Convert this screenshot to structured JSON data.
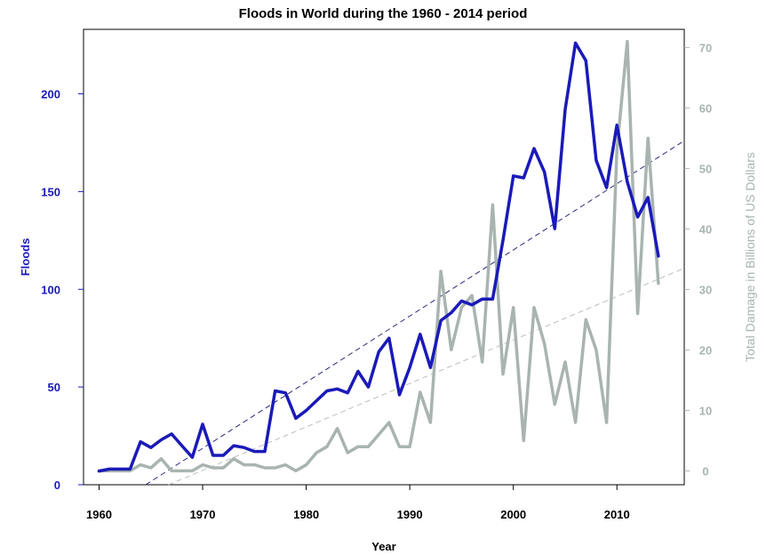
{
  "chart_data": {
    "type": "line",
    "title": "Floods in World during the 1960 - 2014  period",
    "xlabel": "Year",
    "ylabel_left": "Floods",
    "ylabel_right": "Total Damage in Billions of US Dollars",
    "xlim": [
      1958.5,
      2016.5
    ],
    "ylim_left": [
      0,
      233
    ],
    "ylim_right": [
      -2.3,
      73
    ],
    "x_ticks": [
      1960,
      1970,
      1980,
      1990,
      2000,
      2010
    ],
    "y_left_ticks": [
      0,
      50,
      100,
      150,
      200
    ],
    "y_right_ticks": [
      0,
      10,
      20,
      30,
      40,
      50,
      60,
      70
    ],
    "colors": {
      "floods": "#1a1ab8",
      "damage": "#a9b4b0",
      "floods_trend": "#2a2a7a",
      "damage_trend": "#b9bfbd",
      "left_axis": "#1a1ab8",
      "right_axis": "#a9b4b0"
    },
    "x": [
      1960,
      1961,
      1962,
      1963,
      1964,
      1965,
      1966,
      1967,
      1968,
      1969,
      1970,
      1971,
      1972,
      1973,
      1974,
      1975,
      1976,
      1977,
      1978,
      1979,
      1980,
      1981,
      1982,
      1983,
      1984,
      1985,
      1986,
      1987,
      1988,
      1989,
      1990,
      1991,
      1992,
      1993,
      1994,
      1995,
      1996,
      1997,
      1998,
      1999,
      2000,
      2001,
      2002,
      2003,
      2004,
      2005,
      2006,
      2007,
      2008,
      2009,
      2010,
      2011,
      2012,
      2013,
      2014
    ],
    "series": [
      {
        "name": "",
        "axis": "left",
        "values": [
          7,
          8,
          8,
          8,
          22,
          19,
          23,
          26,
          20,
          14,
          31,
          15,
          15,
          20,
          19,
          17,
          17,
          48,
          47,
          34,
          38,
          43,
          48,
          49,
          47,
          58,
          50,
          68,
          75,
          46,
          60,
          77,
          60,
          84,
          88,
          94,
          92,
          95,
          95,
          125,
          158,
          157,
          172,
          160,
          131,
          192,
          226,
          217,
          166,
          152,
          184,
          155,
          137,
          147,
          117
        ]
      },
      {
        "name": "",
        "axis": "right",
        "values": [
          0,
          0,
          0,
          0,
          1,
          0.5,
          2,
          0,
          0,
          0,
          1,
          0.5,
          0.5,
          2,
          1,
          1,
          0.5,
          0.5,
          1,
          0,
          1,
          3,
          4,
          7,
          3,
          4,
          4,
          6,
          8,
          4,
          4,
          13,
          8,
          33,
          20,
          27,
          29,
          18,
          44,
          16,
          27,
          5,
          27,
          21,
          11,
          18,
          8,
          25,
          20,
          8,
          53,
          71,
          26,
          55,
          31
        ]
      }
    ],
    "trendlines": [
      {
        "axis": "left",
        "from": [
          1964.5,
          0
        ],
        "to": [
          2016.5,
          176
        ]
      },
      {
        "axis": "right",
        "from": [
          1966.7,
          -2.3
        ],
        "to": [
          2016.5,
          33.5
        ]
      }
    ]
  }
}
